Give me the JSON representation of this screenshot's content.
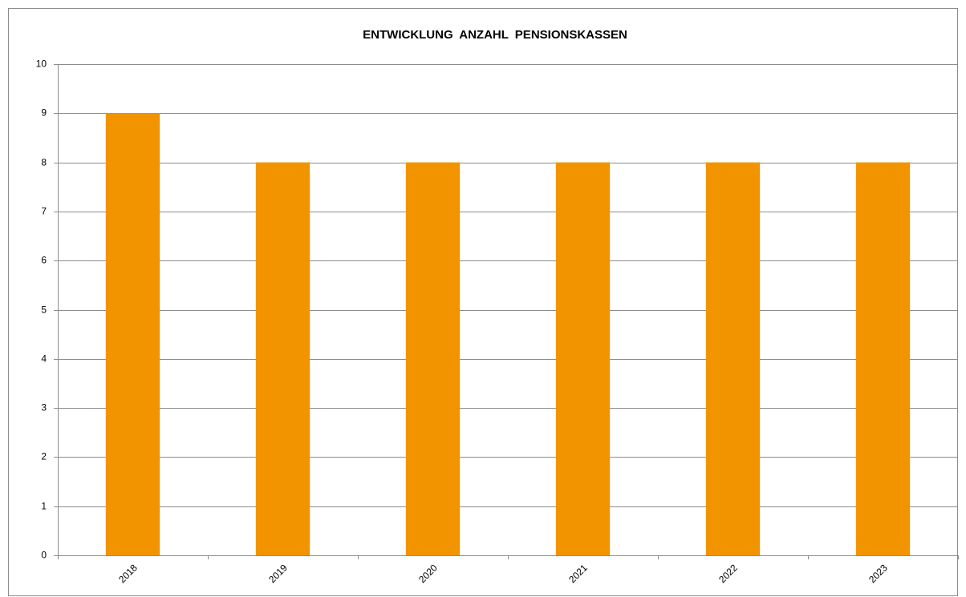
{
  "chart_data": {
    "type": "bar",
    "title": "ENTWICKLUNG ANZAHL PENSIONSKASSEN",
    "categories": [
      "2018",
      "2019",
      "2020",
      "2021",
      "2022",
      "2023"
    ],
    "values": [
      9,
      8,
      8,
      8,
      8,
      8
    ],
    "color": "#f29400",
    "ylim": [
      0,
      10
    ],
    "yticks": [
      0,
      1,
      2,
      3,
      4,
      5,
      6,
      7,
      8,
      9,
      10
    ],
    "grid": true
  }
}
